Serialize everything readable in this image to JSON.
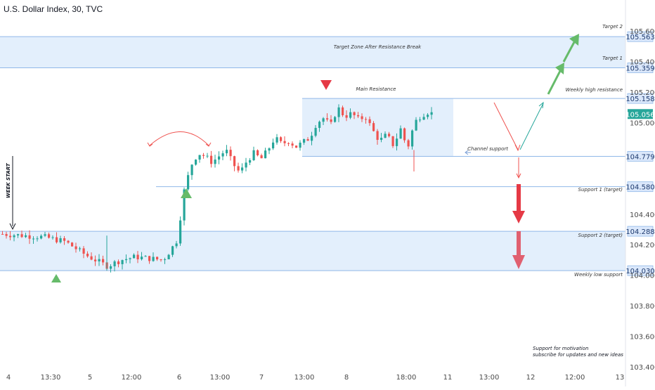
{
  "header": {
    "title": "U.S. Dollar Index, 30, TVC"
  },
  "colors": {
    "up": "#26a69a",
    "down": "#ef5350",
    "zone_fill": "#e3effc",
    "zone_line": "#90b8e8",
    "current_price_bg": "#26a69a",
    "arrow_green": "#66bb6a",
    "arrow_red": "#e53945",
    "axis_text": "#4a4a4a",
    "level_box_bg": "#dbe8fb"
  },
  "chart_data": {
    "type": "candlestick",
    "title": "U.S. Dollar Index, 30, TVC",
    "ylim": [
      103.4,
      105.6
    ],
    "y_ticks": [
      {
        "label": "105.600",
        "value": 105.6
      },
      {
        "label": "105.400",
        "value": 105.4
      },
      {
        "label": "105.200",
        "value": 105.2
      },
      {
        "label": "105.000",
        "value": 105.0
      },
      {
        "label": "104.400",
        "value": 104.4
      },
      {
        "label": "104.200",
        "value": 104.2
      },
      {
        "label": "104.000",
        "value": 104.0
      },
      {
        "label": "103.800",
        "value": 103.8
      },
      {
        "label": "103.600",
        "value": 103.6
      },
      {
        "label": "103.400",
        "value": 103.4
      }
    ],
    "x_ticks": [
      "4",
      "13:30",
      "5",
      "12:00",
      "6",
      "13:00",
      "7",
      "13:00",
      "8",
      "18:00",
      "11",
      "13:00",
      "12",
      "12:00",
      "13"
    ],
    "current_price": "105.056",
    "levels": [
      {
        "name": "Target 2",
        "value": 105.563,
        "label": "105.563"
      },
      {
        "name": "Target 1",
        "value": 105.359,
        "label": "105.359"
      },
      {
        "name": "Weekly high resistance",
        "value": 105.158,
        "label": "105.158"
      },
      {
        "name": "Channel support",
        "value": 104.779,
        "label": "104.779"
      },
      {
        "name": "Support 1 (target)",
        "value": 104.58,
        "label": "104.580"
      },
      {
        "name": "Support 2 (target)",
        "value": 104.288,
        "label": "104.288"
      },
      {
        "name": "Weekly low support",
        "value": 104.03,
        "label": "104.030"
      }
    ],
    "zones": [
      {
        "label": "Target Zone After Resistance Break",
        "from": 105.359,
        "to": 105.563
      },
      {
        "label": "Main Resistance",
        "from": 104.779,
        "to": 105.158
      },
      {
        "label": "",
        "from": 104.03,
        "to": 104.288
      }
    ],
    "price_path": [
      [
        0,
        104.27
      ],
      [
        3,
        104.26
      ],
      [
        6,
        104.25
      ],
      [
        9,
        104.22
      ],
      [
        12,
        104.13
      ],
      [
        15,
        104.06
      ],
      [
        17,
        104.1
      ],
      [
        19,
        104.12
      ],
      [
        21,
        104.11
      ],
      [
        23,
        104.1
      ],
      [
        24,
        104.16
      ],
      [
        25,
        104.23
      ],
      [
        26,
        104.55
      ],
      [
        27,
        104.72
      ],
      [
        28,
        104.8
      ],
      [
        29,
        104.78
      ],
      [
        30,
        104.74
      ],
      [
        31,
        104.78
      ],
      [
        32,
        104.82
      ],
      [
        33,
        104.73
      ],
      [
        34,
        104.67
      ],
      [
        35,
        104.75
      ],
      [
        36,
        104.8
      ],
      [
        37,
        104.76
      ],
      [
        38,
        104.82
      ],
      [
        39,
        104.9
      ],
      [
        40,
        104.86
      ],
      [
        41,
        104.88
      ],
      [
        42,
        104.84
      ],
      [
        43,
        104.87
      ],
      [
        44,
        104.9
      ],
      [
        45,
        105.0
      ],
      [
        46,
        105.03
      ],
      [
        47,
        104.98
      ],
      [
        48,
        105.1
      ],
      [
        49,
        105.04
      ],
      [
        50,
        105.06
      ],
      [
        51,
        105.02
      ],
      [
        52,
        105.04
      ],
      [
        53,
        104.95
      ],
      [
        54,
        104.88
      ],
      [
        55,
        104.92
      ],
      [
        56,
        104.85
      ],
      [
        57,
        104.96
      ],
      [
        58,
        104.83
      ],
      [
        59,
        105.0
      ],
      [
        60,
        105.05
      ],
      [
        61,
        105.07
      ],
      [
        62,
        105.05
      ]
    ],
    "price_path_end": 62,
    "x_span": 110
  },
  "annotations": {
    "week_start": "WEEK START",
    "target_zone": "Target Zone After Resistance Break",
    "main_resistance": "Main Resistance",
    "target2": "Target 2",
    "target1": "Target 1",
    "weekly_high": "Weekly high resistance",
    "channel_support": "Channel support",
    "support1": "Support 1 (target)",
    "support2": "Support 2 (target)",
    "weekly_low": "Weekly low support",
    "footer_line1": "Support for motivation",
    "footer_line2": "subscribe for updates and new ideas"
  }
}
